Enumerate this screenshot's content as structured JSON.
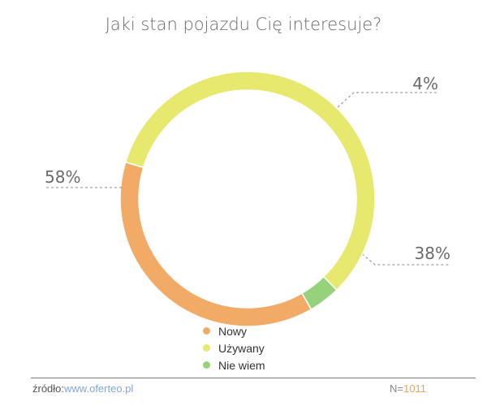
{
  "chart_data": {
    "type": "pie",
    "style": "donut",
    "title": "Jaki stan pojazdu Cię interesuje?",
    "slices": [
      {
        "label": "Nowy",
        "value": 38,
        "display": "38%",
        "color": "#f2ab67"
      },
      {
        "label": "Używany",
        "value": 58,
        "display": "58%",
        "color": "#e6e96d"
      },
      {
        "label": "Nie wiem",
        "value": 4,
        "display": "4%",
        "color": "#96d27b"
      }
    ],
    "legend_position": "bottom",
    "start_angle_deg": 60
  },
  "footer": {
    "source_label": "źródło:",
    "source_url": "www.oferteo.pl",
    "sample_label": "N=",
    "sample_value": "1011"
  }
}
